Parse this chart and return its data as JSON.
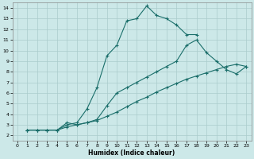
{
  "xlabel": "Humidex (Indice chaleur)",
  "background_color": "#cce8e8",
  "grid_color": "#aacccc",
  "line_color": "#1a6e6a",
  "xlim": [
    -0.5,
    23.5
  ],
  "ylim": [
    1.5,
    14.5
  ],
  "xticks": [
    0,
    1,
    2,
    3,
    4,
    5,
    6,
    7,
    8,
    9,
    10,
    11,
    12,
    13,
    14,
    15,
    16,
    17,
    18,
    19,
    20,
    21,
    22,
    23
  ],
  "yticks": [
    2,
    3,
    4,
    5,
    6,
    7,
    8,
    9,
    10,
    11,
    12,
    13,
    14
  ],
  "line1_x": [
    1,
    2,
    3,
    4,
    5,
    6,
    7,
    8,
    9,
    10,
    11,
    12,
    13,
    14,
    15,
    16,
    17,
    18
  ],
  "line1_y": [
    2.5,
    2.5,
    2.5,
    2.5,
    3.0,
    3.2,
    4.5,
    6.5,
    9.5,
    10.5,
    12.8,
    13.0,
    14.2,
    13.3,
    13.0,
    12.4,
    11.5,
    11.5
  ],
  "line2_x": [
    1,
    2,
    3,
    4,
    5,
    6,
    7,
    8,
    9,
    10,
    11,
    12,
    13,
    14,
    15,
    16,
    17,
    18,
    19,
    20,
    21,
    22,
    23
  ],
  "line2_y": [
    2.5,
    2.5,
    2.5,
    2.5,
    3.2,
    3.0,
    3.2,
    3.5,
    4.8,
    6.0,
    6.5,
    7.0,
    7.5,
    8.0,
    8.5,
    9.0,
    10.5,
    11.0,
    9.8,
    9.0,
    8.2,
    7.8,
    8.5
  ],
  "line3_x": [
    1,
    2,
    3,
    4,
    5,
    6,
    7,
    8,
    9,
    10,
    11,
    12,
    13,
    14,
    15,
    16,
    17,
    18,
    19,
    20,
    21,
    22,
    23
  ],
  "line3_y": [
    2.5,
    2.5,
    2.5,
    2.5,
    2.8,
    3.0,
    3.2,
    3.4,
    3.8,
    4.2,
    4.7,
    5.2,
    5.6,
    6.1,
    6.5,
    6.9,
    7.3,
    7.6,
    7.9,
    8.2,
    8.5,
    8.7,
    8.5
  ]
}
